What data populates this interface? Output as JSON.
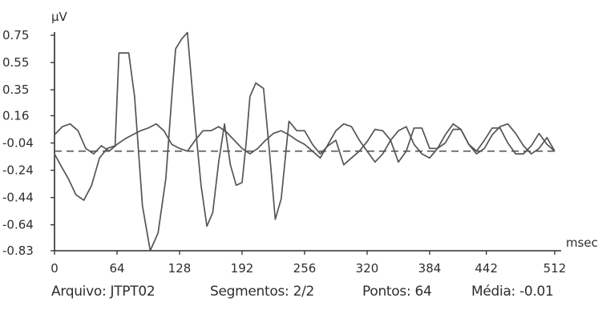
{
  "chart_data": {
    "type": "line",
    "ylabel": "μV",
    "xlabel": "msec",
    "xlim": [
      0,
      512
    ],
    "ylim": [
      -0.83,
      0.75
    ],
    "x_ticks": [
      {
        "value": 0,
        "label": "0"
      },
      {
        "value": 64,
        "label": "64"
      },
      {
        "value": 128,
        "label": "128"
      },
      {
        "value": 192,
        "label": "192"
      },
      {
        "value": 256,
        "label": "256"
      },
      {
        "value": 320,
        "label": "320"
      },
      {
        "value": 384,
        "label": "384"
      },
      {
        "value": 442,
        "label": "442"
      },
      {
        "value": 512,
        "label": "512"
      }
    ],
    "y_ticks": [
      {
        "value": 0.75,
        "label": "0.75"
      },
      {
        "value": 0.55,
        "label": "0.55"
      },
      {
        "value": 0.35,
        "label": "0.35"
      },
      {
        "value": 0.16,
        "label": "0.16"
      },
      {
        "value": -0.04,
        "label": "-0.04"
      },
      {
        "value": -0.24,
        "label": "-0.24"
      },
      {
        "value": -0.44,
        "label": "-0.44"
      },
      {
        "value": -0.64,
        "label": "-0.64"
      },
      {
        "value": -0.83,
        "label": "-0.83"
      }
    ],
    "reference_line": {
      "y": -0.1,
      "style": "dashed"
    },
    "grid": false,
    "legend": "none",
    "series": [
      {
        "x": [
          0,
          6,
          14,
          22,
          30,
          38,
          46,
          54,
          62,
          66,
          72,
          76,
          82,
          90,
          98,
          106,
          114,
          120,
          124,
          130,
          136,
          144,
          150,
          156,
          162,
          168,
          174,
          180,
          186,
          192,
          196,
          200,
          206,
          210,
          214,
          220,
          226,
          232,
          240,
          248,
          256,
          264,
          272,
          280,
          288,
          296,
          304,
          312,
          320,
          328,
          336,
          344,
          352,
          360,
          368,
          376,
          384,
          392,
          400,
          408,
          416,
          424,
          432,
          440,
          448,
          456,
          464,
          472,
          480,
          488,
          496,
          504,
          512
        ],
        "y": [
          -0.12,
          -0.2,
          -0.3,
          -0.42,
          -0.46,
          -0.35,
          -0.15,
          -0.08,
          -0.06,
          0.62,
          0.62,
          0.62,
          0.3,
          -0.5,
          -0.83,
          -0.7,
          -0.3,
          0.3,
          0.65,
          0.72,
          0.77,
          0.1,
          -0.35,
          -0.65,
          -0.55,
          -0.18,
          0.1,
          -0.2,
          -0.35,
          -0.33,
          -0.05,
          0.3,
          0.4,
          0.38,
          0.36,
          -0.1,
          -0.6,
          -0.45,
          0.12,
          0.05,
          0.05,
          -0.05,
          -0.12,
          -0.06,
          -0.02,
          -0.2,
          -0.15,
          -0.1,
          -0.03,
          0.06,
          0.05,
          -0.02,
          -0.18,
          -0.1,
          0.07,
          0.07,
          -0.08,
          -0.08,
          -0.04,
          0.06,
          0.06,
          -0.05,
          -0.1,
          -0.02,
          0.07,
          0.07,
          -0.04,
          -0.12,
          -0.12,
          -0.06,
          0.03,
          -0.05,
          -0.1
        ]
      },
      {
        "x": [
          0,
          8,
          16,
          24,
          32,
          40,
          48,
          56,
          64,
          72,
          80,
          88,
          96,
          104,
          112,
          120,
          128,
          136,
          144,
          152,
          160,
          168,
          176,
          184,
          192,
          200,
          208,
          216,
          224,
          232,
          240,
          248,
          256,
          264,
          272,
          280,
          288,
          296,
          304,
          312,
          320,
          328,
          336,
          344,
          352,
          360,
          368,
          376,
          384,
          392,
          400,
          408,
          416,
          424,
          432,
          440,
          448,
          456,
          464,
          472,
          480,
          488,
          496,
          504,
          512
        ],
        "y": [
          0.02,
          0.08,
          0.1,
          0.05,
          -0.08,
          -0.12,
          -0.06,
          -0.1,
          -0.05,
          -0.01,
          0.02,
          0.05,
          0.07,
          0.1,
          0.05,
          -0.05,
          -0.08,
          -0.1,
          -0.02,
          0.05,
          0.05,
          0.08,
          0.04,
          -0.02,
          -0.08,
          -0.12,
          -0.08,
          -0.02,
          0.03,
          0.05,
          0.02,
          -0.02,
          -0.05,
          -0.1,
          -0.15,
          -0.05,
          0.05,
          0.1,
          0.08,
          -0.02,
          -0.1,
          -0.18,
          -0.12,
          -0.02,
          0.05,
          0.08,
          -0.05,
          -0.12,
          -0.15,
          -0.08,
          0.02,
          0.1,
          0.06,
          -0.05,
          -0.12,
          -0.08,
          0.02,
          0.08,
          0.1,
          0.03,
          -0.06,
          -0.12,
          -0.08,
          0.0,
          -0.1
        ]
      }
    ]
  },
  "footer": {
    "arquivo": "Arquivo: JTPT02",
    "segmentos": "Segmentos: 2/2",
    "pontos": "Pontos: 64",
    "media": "Média: -0.01"
  },
  "colors": {
    "line": "#555555",
    "axis": "#2e2e2e",
    "text": "#2e2e2e"
  }
}
